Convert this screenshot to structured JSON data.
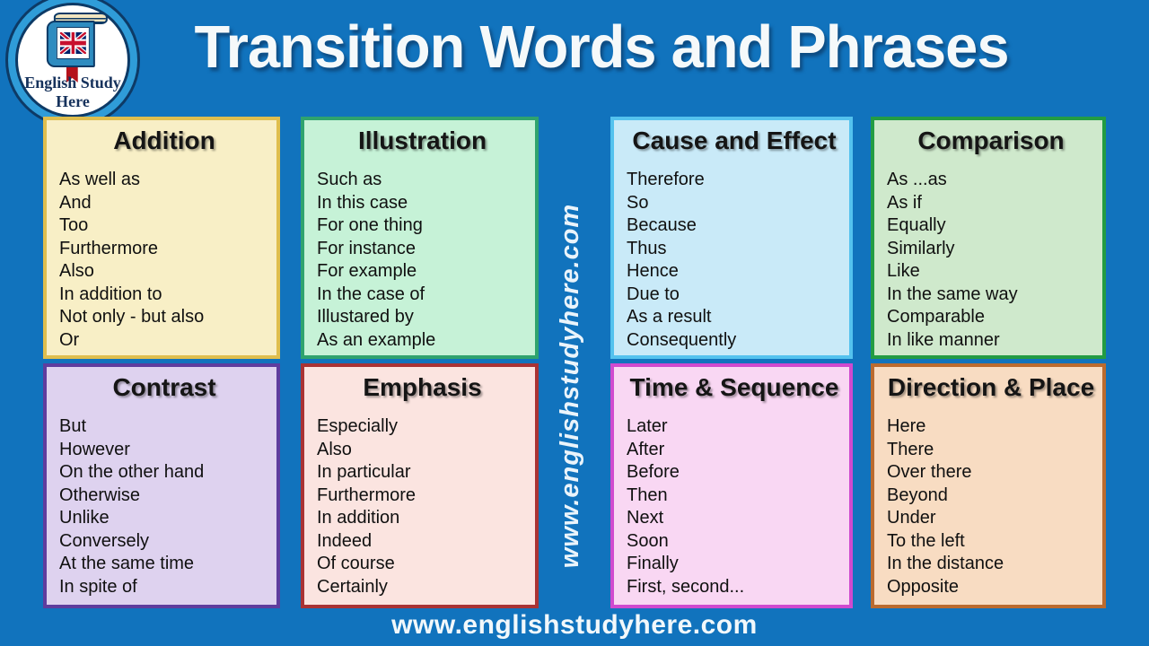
{
  "page": {
    "title": "Transition Words and Phrases",
    "watermark": "www.englishstudyhere.com",
    "footer_url": "www.englishstudyhere.com",
    "background_color": "#1173BD",
    "title_color": "#F5F9FA"
  },
  "logo": {
    "line1": "English Study",
    "line2": "Here",
    "icons": [
      "book-icon",
      "uk-flag-icon",
      "bookmark-icon"
    ],
    "ring_color": "#2F9CD8",
    "text_color": "#16325C"
  },
  "cards": [
    {
      "title": "Addition",
      "items": [
        "As well as",
        "And",
        "Too",
        "Furthermore",
        "Also",
        "In addition to",
        "Not only - but also",
        "Or"
      ],
      "bg": "#F8EFC6",
      "border": "#DFBE4E"
    },
    {
      "title": "Illustration",
      "items": [
        "Such as",
        "In this case",
        "For one thing",
        "For instance",
        "For example",
        "In the case of",
        "Illustared by",
        "As an example"
      ],
      "bg": "#C6F2D7",
      "border": "#2FA36E"
    },
    {
      "title": "Cause and Effect",
      "items": [
        "Therefore",
        "So",
        "Because",
        "Thus",
        "Hence",
        "Due to",
        "As a result",
        "Consequently"
      ],
      "bg": "#C9EAF8",
      "border": "#54C2EE"
    },
    {
      "title": "Comparison",
      "items": [
        "As ...as",
        "As if",
        "Equally",
        "Similarly",
        "Like",
        "In the same way",
        "Comparable",
        "In like manner"
      ],
      "bg": "#CFE9CC",
      "border": "#239C43"
    },
    {
      "title": "Contrast",
      "items": [
        "But",
        "However",
        "On the other hand",
        "Otherwise",
        "Unlike",
        "Conversely",
        "At the same time",
        "In spite of"
      ],
      "bg": "#DED2EF",
      "border": "#5F3D9E"
    },
    {
      "title": "Emphasis",
      "items": [
        "Especially",
        "Also",
        "In particular",
        "Furthermore",
        "In addition",
        "Indeed",
        "Of course",
        "Certainly"
      ],
      "bg": "#FBE4E0",
      "border": "#A93335"
    },
    {
      "title": "Time & Sequence",
      "items": [
        "Later",
        "After",
        "Before",
        "Then",
        "Next",
        "Soon",
        "Finally",
        "First, second..."
      ],
      "bg": "#F9D7F3",
      "border": "#CF4ACF"
    },
    {
      "title": "Direction & Place",
      "items": [
        "Here",
        "There",
        "Over there",
        "Beyond",
        "Under",
        "To the left",
        "In the distance",
        "Opposite"
      ],
      "bg": "#F8DCC2",
      "border": "#BB6B2F"
    }
  ]
}
